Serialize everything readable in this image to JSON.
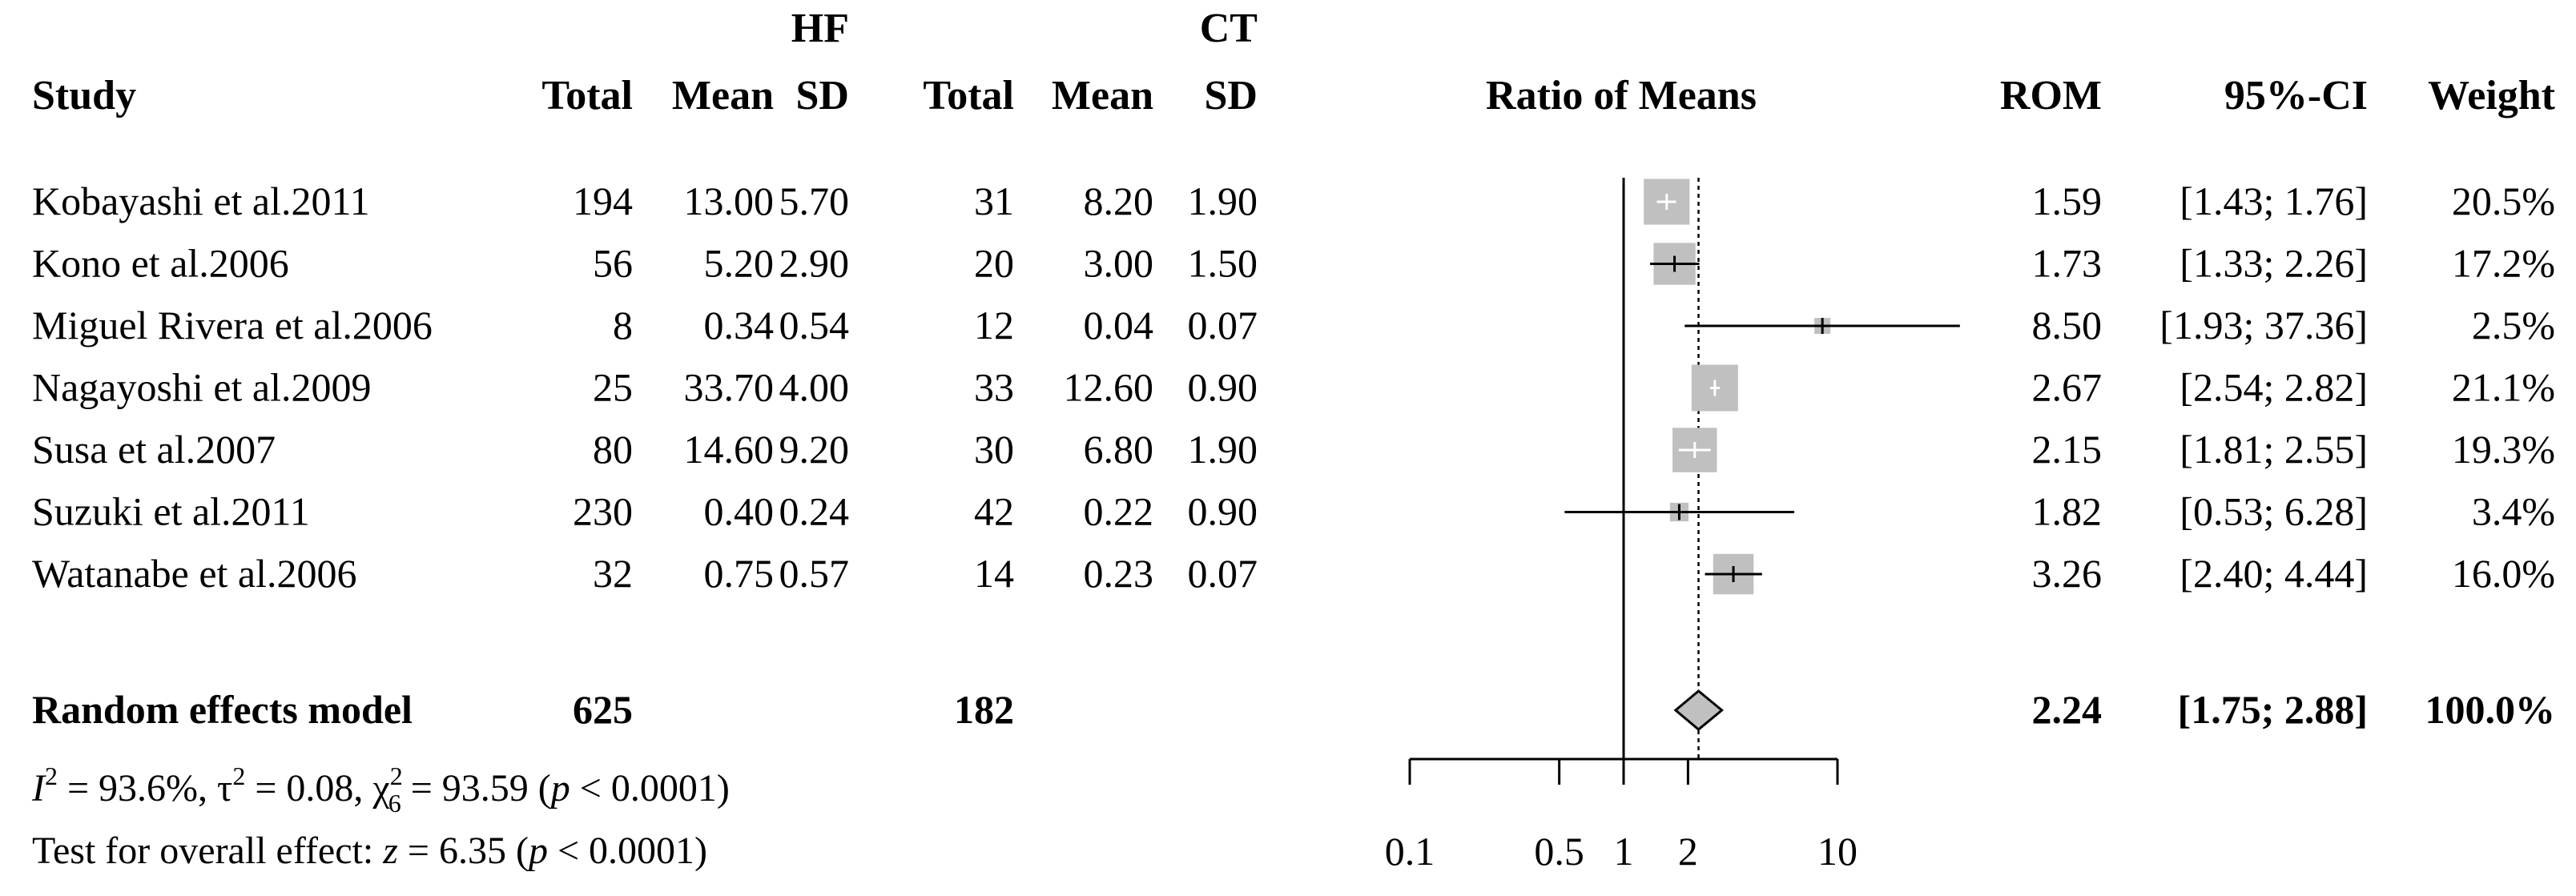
{
  "chart_data": {
    "type": "forest",
    "title": "Ratio of Means",
    "columns": {
      "study": "Study",
      "group1_label": "HF",
      "group2_label": "CT",
      "total": "Total",
      "mean": "Mean",
      "sd": "SD",
      "rom": "ROM",
      "ci": "95%-CI",
      "weight": "Weight"
    },
    "studies": [
      {
        "name": "Kobayashi et al.2011",
        "hf_total": "194",
        "hf_mean": "13.00",
        "hf_sd": "5.70",
        "ct_total": "31",
        "ct_mean": "8.20",
        "ct_sd": "1.90",
        "rom": 1.59,
        "lower": 1.43,
        "upper": 1.76,
        "rom_text": "1.59",
        "ci_text": "[1.43;  1.76]",
        "weight": 20.5,
        "weight_text": "20.5%"
      },
      {
        "name": "Kono et al.2006",
        "hf_total": "56",
        "hf_mean": "5.20",
        "hf_sd": "2.90",
        "ct_total": "20",
        "ct_mean": "3.00",
        "ct_sd": "1.50",
        "rom": 1.73,
        "lower": 1.33,
        "upper": 2.26,
        "rom_text": "1.73",
        "ci_text": "[1.33;  2.26]",
        "weight": 17.2,
        "weight_text": "17.2%"
      },
      {
        "name": "Miguel Rivera et al.2006",
        "hf_total": "8",
        "hf_mean": "0.34",
        "hf_sd": "0.54",
        "ct_total": "12",
        "ct_mean": "0.04",
        "ct_sd": "0.07",
        "rom": 8.5,
        "lower": 1.93,
        "upper": 37.36,
        "rom_text": "8.50",
        "ci_text": "[1.93; 37.36]",
        "weight": 2.5,
        "weight_text": "2.5%"
      },
      {
        "name": "Nagayoshi et al.2009",
        "hf_total": "25",
        "hf_mean": "33.70",
        "hf_sd": "4.00",
        "ct_total": "33",
        "ct_mean": "12.60",
        "ct_sd": "0.90",
        "rom": 2.67,
        "lower": 2.54,
        "upper": 2.82,
        "rom_text": "2.67",
        "ci_text": "[2.54;  2.82]",
        "weight": 21.1,
        "weight_text": "21.1%"
      },
      {
        "name": "Susa et al.2007",
        "hf_total": "80",
        "hf_mean": "14.60",
        "hf_sd": "9.20",
        "ct_total": "30",
        "ct_mean": "6.80",
        "ct_sd": "1.90",
        "rom": 2.15,
        "lower": 1.81,
        "upper": 2.55,
        "rom_text": "2.15",
        "ci_text": "[1.81;  2.55]",
        "weight": 19.3,
        "weight_text": "19.3%"
      },
      {
        "name": "Suzuki et al.2011",
        "hf_total": "230",
        "hf_mean": "0.40",
        "hf_sd": "0.24",
        "ct_total": "42",
        "ct_mean": "0.22",
        "ct_sd": "0.90",
        "rom": 1.82,
        "lower": 0.53,
        "upper": 6.28,
        "rom_text": "1.82",
        "ci_text": "[0.53;  6.28]",
        "weight": 3.4,
        "weight_text": "3.4%"
      },
      {
        "name": "Watanabe et al.2006",
        "hf_total": "32",
        "hf_mean": "0.75",
        "hf_sd": "0.57",
        "ct_total": "14",
        "ct_mean": "0.23",
        "ct_sd": "0.07",
        "rom": 3.26,
        "lower": 2.4,
        "upper": 4.44,
        "rom_text": "3.26",
        "ci_text": "[2.40;  4.44]",
        "weight": 16.0,
        "weight_text": "16.0%"
      }
    ],
    "pooled": {
      "label": "Random effects model",
      "hf_total": "625",
      "ct_total": "182",
      "rom": 2.24,
      "lower": 1.75,
      "upper": 2.88,
      "rom_text": "2.24",
      "ci_text": "[1.75;  2.88]",
      "weight_text": "100.0%"
    },
    "heterogeneity_text": "I² = 93.6%, τ² = 0.08, χ²₆ = 93.59 (p < 0.0001)",
    "heterogeneity": {
      "i2_symbol": "I",
      "i2_power": "2",
      "i2_value": " = 93.6%, ",
      "tau_symbol": "τ",
      "tau_power": "2",
      "tau_value": " = 0.08, ",
      "chi_symbol": "χ",
      "chi_power": "2",
      "chi_df": "6",
      "chi_value": " = 93.59 (",
      "p_symbol": "p",
      "p_value": " < 0.0001)"
    },
    "overall_test_text": "Test for overall effect: z = 6.35 (p < 0.0001)",
    "overall_test": {
      "prefix": "Test for overall effect: ",
      "z_symbol": "z",
      "z_value": " = 6.35 (",
      "p_symbol": "p",
      "p_value": " < 0.0001)"
    },
    "x_axis": {
      "scale": "log",
      "xlim": [
        0.1,
        10
      ],
      "ticks": [
        0.1,
        0.5,
        1,
        2,
        10
      ],
      "tick_labels": [
        "0.1",
        "0.5",
        "1",
        "2",
        "10"
      ],
      "null_line": 1,
      "reference_line": 2.24
    },
    "colors": {
      "square": "#c0c0c0",
      "line": "#000000",
      "diamond": "#c0c0c0",
      "text": "#000000"
    }
  }
}
